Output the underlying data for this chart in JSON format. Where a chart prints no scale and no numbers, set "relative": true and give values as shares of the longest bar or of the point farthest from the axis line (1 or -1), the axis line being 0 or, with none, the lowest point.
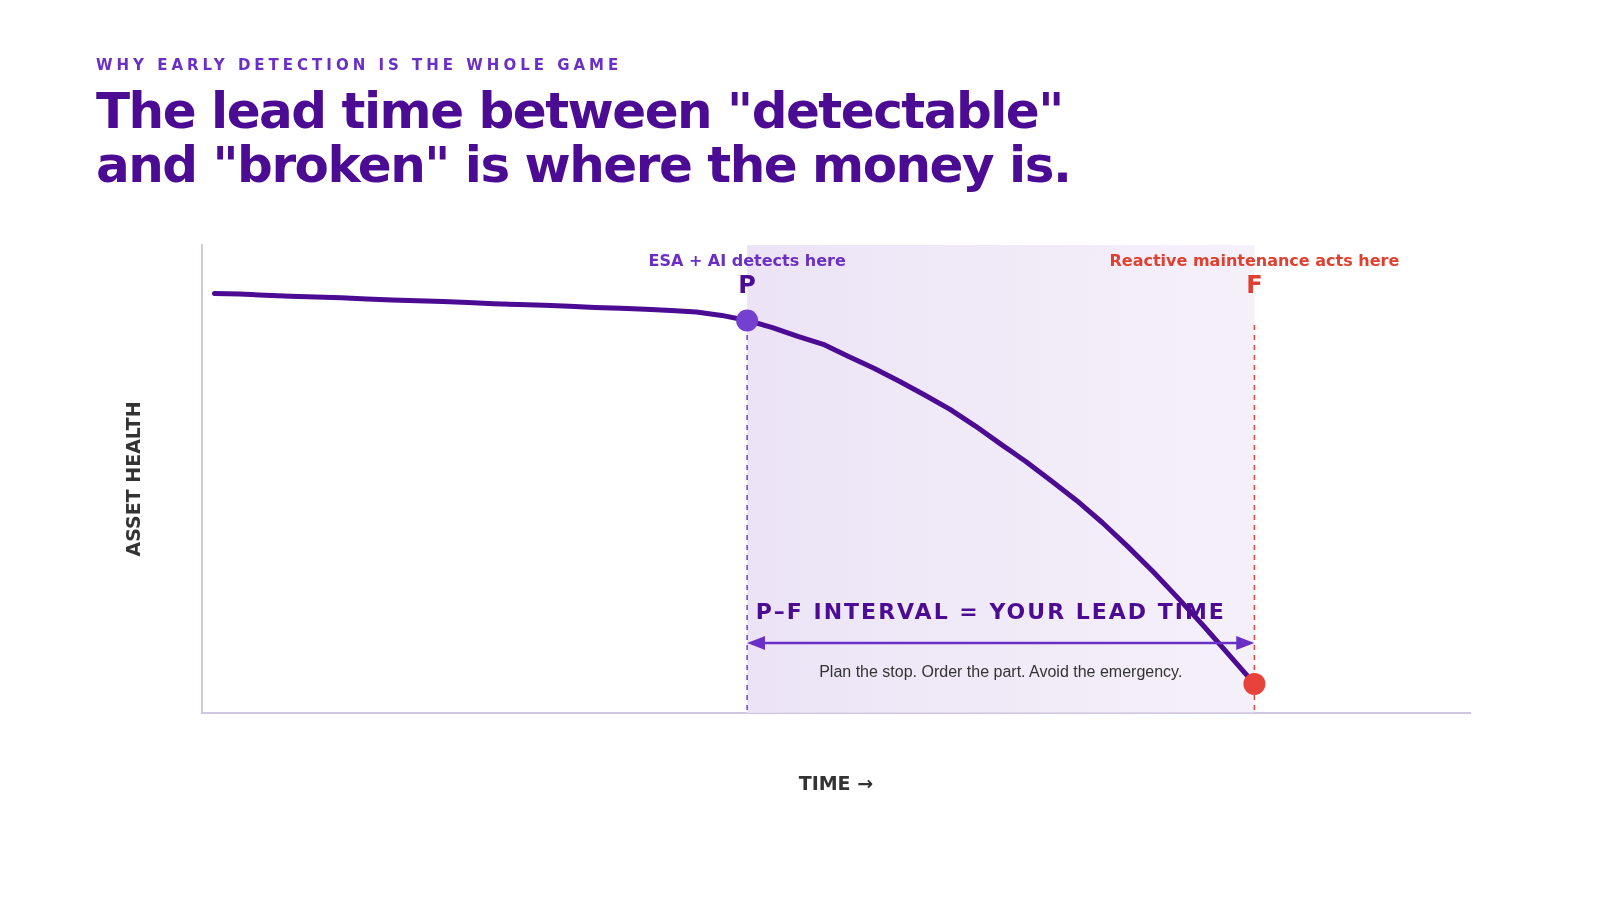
{
  "chart_data": {
    "type": "line",
    "subtitle": "WHY EARLY DETECTION IS THE WHOLE GAME",
    "title": "The lead time between \"detectable\" and \"broken\" is where the money is.",
    "xlabel": "TIME →",
    "ylabel": "ASSET HEALTH",
    "relative": true,
    "grid": false,
    "legend": false,
    "categories": [
      null,
      null,
      null,
      null,
      null,
      null,
      null,
      null,
      null,
      null,
      null,
      null,
      null,
      null,
      null,
      null,
      null,
      null,
      null,
      null,
      null,
      null,
      null,
      null,
      null,
      null,
      null,
      null,
      null,
      null,
      null,
      null,
      null,
      null,
      null,
      null,
      null,
      null,
      null,
      null,
      null,
      null,
      null,
      null,
      null,
      null,
      null,
      null,
      null,
      null
    ],
    "series": [
      {
        "color": "#4b0b92",
        "marker": "none",
        "values": [
          1.0,
          0.999,
          0.996,
          0.994,
          0.992,
          0.99,
          0.987,
          0.985,
          0.983,
          0.981,
          0.979,
          0.976,
          0.974,
          0.972,
          0.97,
          0.967,
          0.965,
          0.963,
          0.96,
          0.956,
          0.948,
          0.936,
          null,
          null,
          null,
          null,
          null,
          null,
          null,
          null,
          null,
          null,
          null,
          null,
          null,
          null,
          null,
          null,
          null,
          null,
          null,
          null,
          null,
          null,
          null,
          null,
          null,
          null,
          null,
          null
        ]
      },
      {
        "color": "#4b0b92",
        "marker": "none",
        "values": [
          null,
          null,
          null,
          null,
          null,
          null,
          null,
          null,
          null,
          null,
          null,
          null,
          null,
          null,
          null,
          null,
          null,
          null,
          null,
          null,
          null,
          0.936,
          0.919,
          0.898,
          0.879,
          0.85,
          0.822,
          0.791,
          0.758,
          0.724,
          0.684,
          0.641,
          0.599,
          0.553,
          0.506,
          0.454,
          0.397,
          0.337,
          0.273,
          0.207,
          0.138,
          0.069,
          null,
          null,
          null,
          null,
          null,
          null,
          null,
          null
        ]
      }
    ],
    "annotations": [
      "ESA + AI detects here",
      "P",
      "Reactive maintenance acts here",
      "F",
      "P–F INTERVAL = YOUR LEAD TIME",
      "Plan the stop. Order the part. Avoid the emergency."
    ]
  }
}
